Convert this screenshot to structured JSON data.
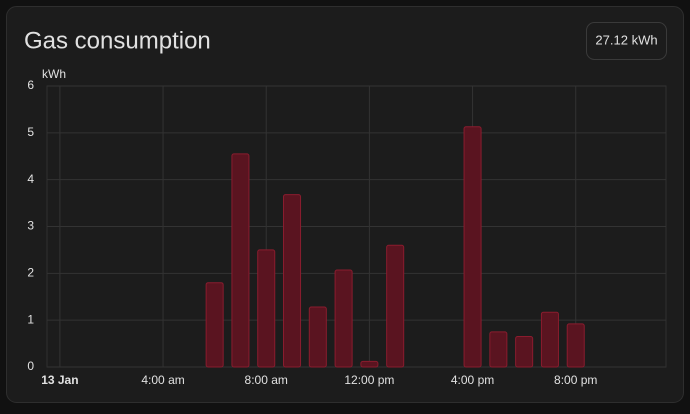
{
  "chart_data": {
    "type": "bar",
    "title": "Gas consumption",
    "total": "27.12 kWh",
    "y_unit": "kWh",
    "x": [
      6,
      7,
      8,
      9,
      10,
      11,
      12,
      13,
      16,
      17,
      18,
      19,
      20
    ],
    "values": [
      1.8,
      4.55,
      2.5,
      3.68,
      1.28,
      2.07,
      0.12,
      2.6,
      5.13,
      0.75,
      0.65,
      1.17,
      0.92
    ],
    "color": "#5a1420",
    "xlim": [
      -0.5,
      23.5
    ],
    "xticks": [
      {
        "value": 0,
        "label": "13 Jan"
      },
      {
        "value": 4,
        "label": "4:00 am"
      },
      {
        "value": 8,
        "label": "8:00 am"
      },
      {
        "value": 12,
        "label": "12:00 pm"
      },
      {
        "value": 16,
        "label": "4:00 pm"
      },
      {
        "value": 20,
        "label": "8:00 pm"
      }
    ],
    "ylim": [
      0,
      6
    ],
    "yticks": [
      0,
      1,
      2,
      3,
      4,
      5,
      6
    ],
    "grid": true
  }
}
